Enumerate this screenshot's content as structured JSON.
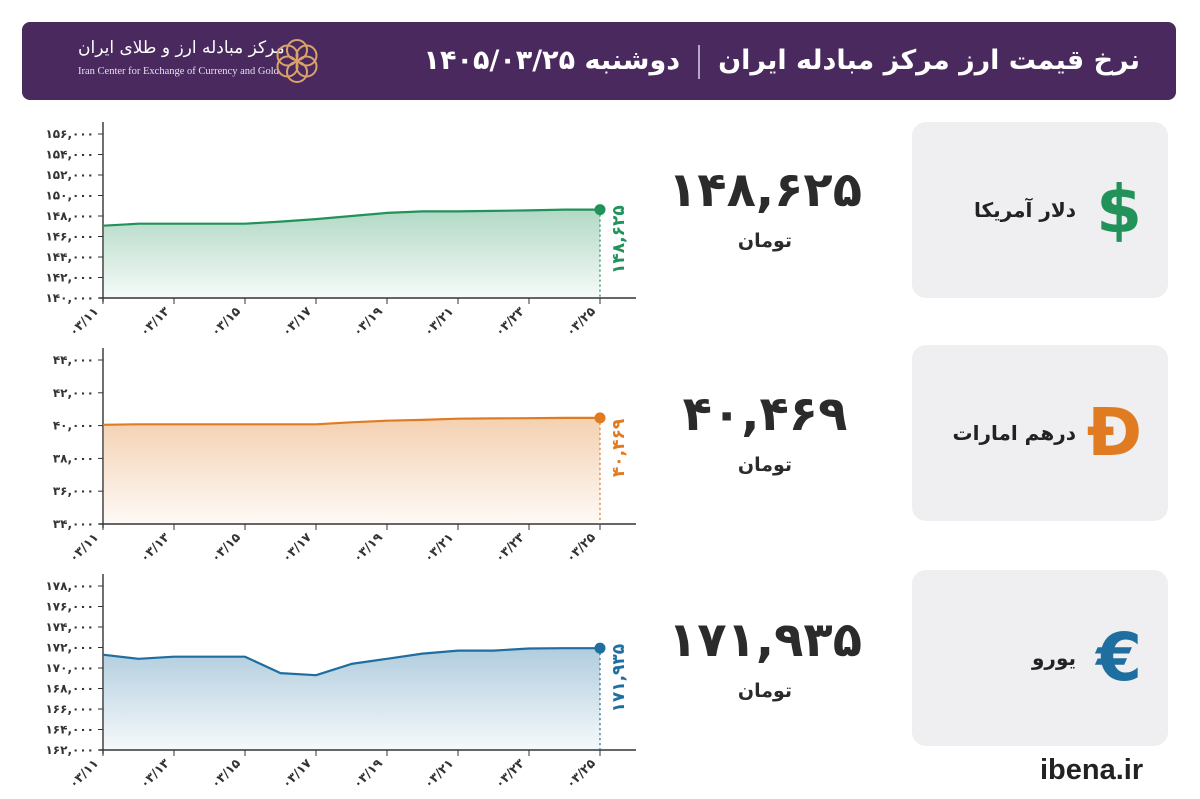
{
  "header": {
    "title": "نرخ قیمت ارز مرکز مبادله ایران",
    "date": "دوشنبه ۱۴۰۵/۰۳/۲۵",
    "logo_fa": "مرکز مبادله ارز و طلای ایران",
    "logo_en": "Iran Center for Exchange of Currency and Gold"
  },
  "footer": {
    "site": "ibena.ir"
  },
  "currencies": [
    {
      "label": "دلار آمریکا",
      "icon": "dollar-sign-icon",
      "symbol": "$",
      "color": "#21925a",
      "value": "۱۴۸,۶۲۵",
      "unit": "تومان"
    },
    {
      "label": "درهم امارات",
      "icon": "dirham-sign-icon",
      "symbol": "Đ",
      "color": "#e07b22",
      "value": "۴۰,۴۶۹",
      "unit": "تومان"
    },
    {
      "label": "یورو",
      "icon": "euro-sign-icon",
      "symbol": "€",
      "color": "#1e6f9f",
      "value": "۱۷۱,۹۳۵",
      "unit": "تومان"
    }
  ],
  "chart_data": [
    {
      "type": "area",
      "series": [
        {
          "values": [
            147050,
            147250,
            147250,
            147250,
            147250,
            147450,
            147700,
            148000,
            148300,
            148450,
            148450,
            148500,
            148550,
            148625,
            148625
          ]
        }
      ],
      "x": [
        1,
        2,
        3,
        4,
        5,
        6,
        7,
        8,
        9,
        10,
        11,
        12,
        13,
        14,
        15
      ],
      "xticks": [
        "۰۳/۱۱",
        "۰۳/۱۳",
        "۰۳/۱۵",
        "۰۳/۱۷",
        "۰۳/۱۹",
        "۰۳/۲۱",
        "۰۳/۲۳",
        "۰۳/۲۵"
      ],
      "yticks": [
        "۱۴۰,۰۰۰",
        "۱۴۲,۰۰۰",
        "۱۴۴,۰۰۰",
        "۱۴۶,۰۰۰",
        "۱۴۸,۰۰۰",
        "۱۵۰,۰۰۰",
        "۱۵۲,۰۰۰",
        "۱۵۴,۰۰۰",
        "۱۵۶,۰۰۰"
      ],
      "ylim": [
        140000,
        156000
      ],
      "last_label": "۱۴۸,۶۲۵",
      "color": "#21925a"
    },
    {
      "type": "area",
      "series": [
        {
          "values": [
            40050,
            40080,
            40080,
            40080,
            40080,
            40080,
            40080,
            40200,
            40300,
            40350,
            40420,
            40440,
            40450,
            40469,
            40469
          ]
        }
      ],
      "x": [
        1,
        2,
        3,
        4,
        5,
        6,
        7,
        8,
        9,
        10,
        11,
        12,
        13,
        14,
        15
      ],
      "xticks": [
        "۰۳/۱۱",
        "۰۳/۱۳",
        "۰۳/۱۵",
        "۰۳/۱۷",
        "۰۳/۱۹",
        "۰۳/۲۱",
        "۰۳/۲۳",
        "۰۳/۲۵"
      ],
      "yticks": [
        "۳۴,۰۰۰",
        "۳۶,۰۰۰",
        "۳۸,۰۰۰",
        "۴۰,۰۰۰",
        "۴۲,۰۰۰",
        "۴۴,۰۰۰"
      ],
      "ylim": [
        34000,
        44000
      ],
      "last_label": "۴۰,۴۶۹",
      "color": "#e07b22"
    },
    {
      "type": "area",
      "series": [
        {
          "values": [
            171300,
            170900,
            171100,
            171100,
            171100,
            169500,
            169300,
            170400,
            170900,
            171400,
            171700,
            171700,
            171900,
            171935,
            171935
          ]
        }
      ],
      "x": [
        1,
        2,
        3,
        4,
        5,
        6,
        7,
        8,
        9,
        10,
        11,
        12,
        13,
        14,
        15
      ],
      "xticks": [
        "۰۳/۱۱",
        "۰۳/۱۳",
        "۰۳/۱۵",
        "۰۳/۱۷",
        "۰۳/۱۹",
        "۰۳/۲۱",
        "۰۳/۲۳",
        "۰۳/۲۵"
      ],
      "yticks": [
        "۱۶۲,۰۰۰",
        "۱۶۴,۰۰۰",
        "۱۶۶,۰۰۰",
        "۱۶۸,۰۰۰",
        "۱۷۰,۰۰۰",
        "۱۷۲,۰۰۰",
        "۱۷۴,۰۰۰",
        "۱۷۶,۰۰۰",
        "۱۷۸,۰۰۰"
      ],
      "ylim": [
        162000,
        178000
      ],
      "last_label": "۱۷۱,۹۳۵",
      "color": "#1e6f9f"
    }
  ]
}
